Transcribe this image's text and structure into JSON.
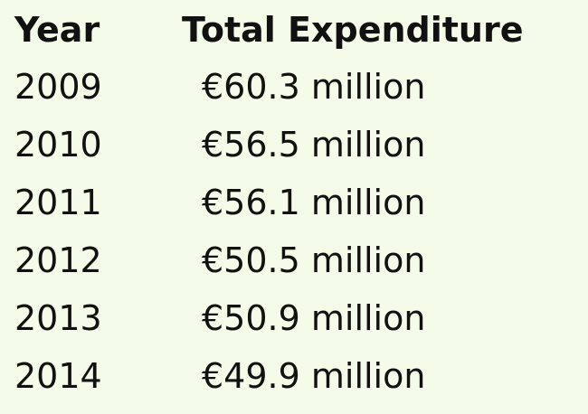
{
  "table": {
    "headers": {
      "year": "Year",
      "expenditure": "Total Expenditure"
    },
    "rows": [
      {
        "year": "2009",
        "expenditure": "€60.3 million"
      },
      {
        "year": "2010",
        "expenditure": "€56.5 million"
      },
      {
        "year": "2011",
        "expenditure": "€56.1 million"
      },
      {
        "year": "2012",
        "expenditure": "€50.5 million"
      },
      {
        "year": "2013",
        "expenditure": "€50.9 million"
      },
      {
        "year": "2014",
        "expenditure": "€49.9 million"
      }
    ]
  },
  "colors": {
    "background": "#f5fbe9",
    "text": "#111111"
  }
}
